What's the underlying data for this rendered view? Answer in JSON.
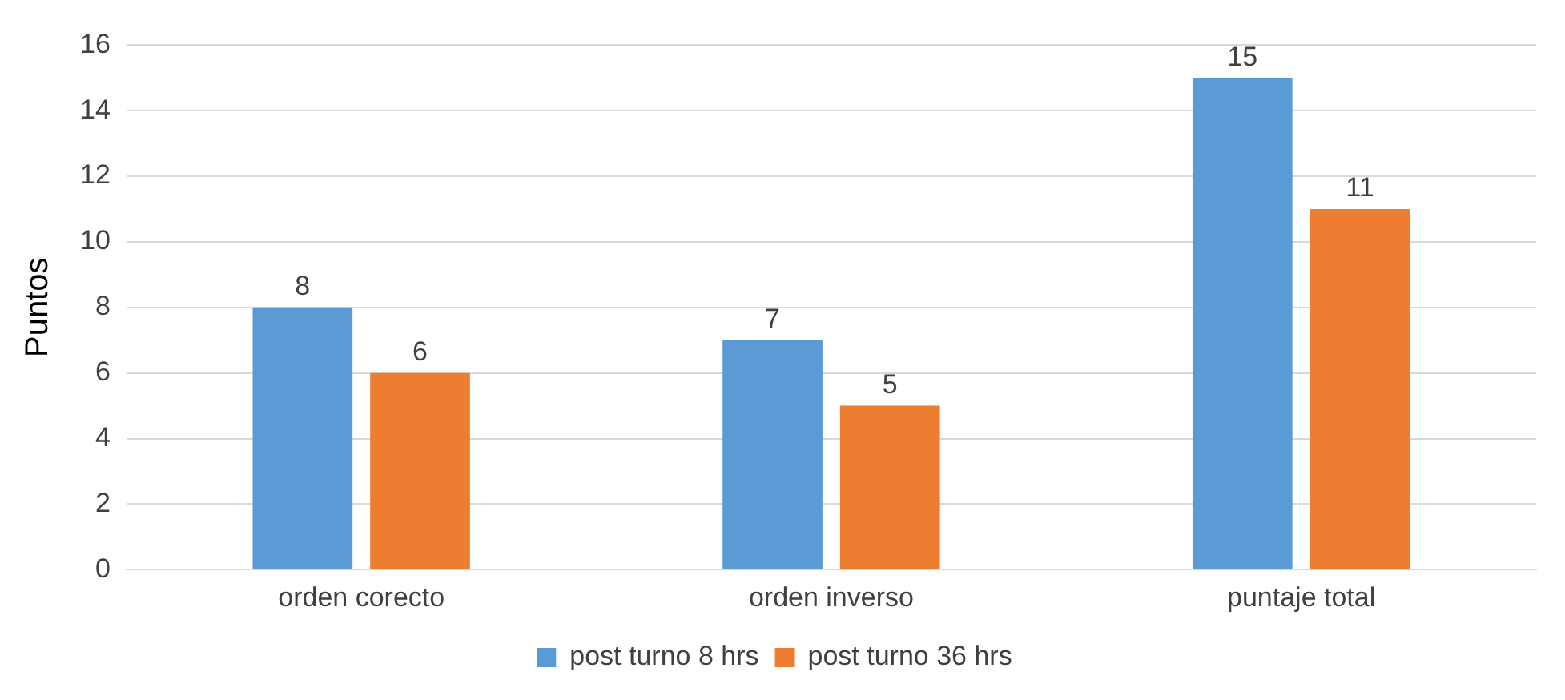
{
  "chart_data": {
    "type": "bar",
    "ylabel": "Puntos",
    "categories": [
      "orden corecto",
      "orden inverso",
      "puntaje total"
    ],
    "series": [
      {
        "name": "post turno 8 hrs",
        "color": "#5b9bd5",
        "values": [
          8,
          7,
          15
        ]
      },
      {
        "name": "post turno 36 hrs",
        "color": "#ed7d31",
        "values": [
          6,
          5,
          11
        ]
      }
    ],
    "ylim": [
      0,
      16
    ],
    "yticks": [
      0,
      2,
      4,
      6,
      8,
      10,
      12,
      14,
      16
    ],
    "grid": "y",
    "legend": "bottom",
    "data_labels": true
  }
}
